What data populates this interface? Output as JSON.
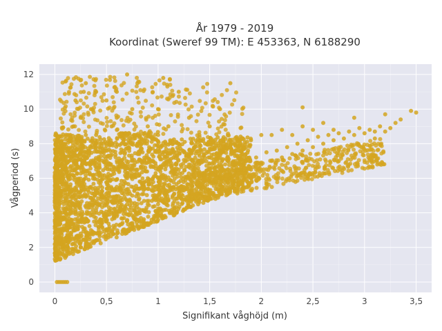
{
  "chart_data": {
    "type": "scatter",
    "title_line1": "År 1979 - 2019",
    "title_line2": "Koordinat (Sweref 99 TM): E 453363, N 6188290",
    "xlabel": "Signifikant våghöjd (m)",
    "ylabel": "Vågperiod (s)",
    "xlim": [
      -0.15,
      3.65
    ],
    "ylim": [
      -0.6,
      12.6
    ],
    "xticks": [
      0,
      0.5,
      1,
      1.5,
      2,
      2.5,
      3,
      3.5
    ],
    "xtick_labels": [
      "0",
      "0,5",
      "1",
      "1,5",
      "2",
      "2,5",
      "3",
      "3,5"
    ],
    "yticks": [
      0,
      2,
      4,
      6,
      8,
      10,
      12
    ],
    "ytick_labels": [
      "0",
      "2",
      "4",
      "6",
      "8",
      "10",
      "12"
    ],
    "grid": true,
    "marker_color": "#D4A520",
    "background_color": "#E5E6F0",
    "points": [
      [
        0.02,
        0
      ],
      [
        0.04,
        0
      ],
      [
        0.06,
        0
      ],
      [
        0.08,
        0
      ],
      [
        0.1,
        0
      ],
      [
        0.12,
        0
      ],
      [
        0.02,
        1.5
      ],
      [
        0.05,
        1.3
      ],
      [
        0.1,
        1.4
      ],
      [
        0.15,
        1.7
      ],
      [
        0.2,
        1.8
      ],
      [
        0.25,
        2.0
      ],
      [
        0.3,
        2.2
      ],
      [
        0.4,
        2.4
      ],
      [
        0.5,
        2.6
      ],
      [
        0.6,
        2.8
      ],
      [
        0.7,
        3.0
      ],
      [
        0.8,
        3.2
      ],
      [
        0.9,
        3.4
      ],
      [
        1.0,
        3.6
      ],
      [
        1.05,
        3.7
      ],
      [
        0.02,
        2.5
      ],
      [
        0.02,
        3.5
      ],
      [
        0.02,
        4.5
      ],
      [
        0.02,
        5.5
      ],
      [
        0.02,
        6.5
      ],
      [
        0.02,
        7.3
      ],
      [
        0.02,
        8.2
      ],
      [
        0.05,
        3.0
      ],
      [
        0.05,
        5.0
      ],
      [
        0.05,
        7.5
      ],
      [
        0.08,
        2.5
      ],
      [
        0.08,
        6.0
      ],
      [
        0.1,
        4.0
      ],
      [
        0.1,
        8.0
      ],
      [
        0.12,
        3.0
      ],
      [
        0.12,
        7.0
      ],
      [
        0.15,
        2.5
      ],
      [
        0.15,
        5.5
      ],
      [
        0.15,
        8.5
      ],
      [
        0.18,
        4.5
      ],
      [
        0.18,
        9.0
      ],
      [
        0.2,
        3.0
      ],
      [
        0.2,
        6.5
      ],
      [
        0.2,
        10.5
      ],
      [
        0.25,
        2.8
      ],
      [
        0.25,
        5.0
      ],
      [
        0.25,
        7.5
      ],
      [
        0.25,
        9.5
      ],
      [
        0.28,
        11.0
      ],
      [
        0.3,
        3.5
      ],
      [
        0.3,
        6.0
      ],
      [
        0.3,
        8.5
      ],
      [
        0.3,
        11.5
      ],
      [
        0.35,
        3.0
      ],
      [
        0.35,
        5.5
      ],
      [
        0.35,
        7.0
      ],
      [
        0.35,
        10.0
      ],
      [
        0.4,
        4.0
      ],
      [
        0.4,
        6.5
      ],
      [
        0.4,
        8.5
      ],
      [
        0.4,
        11.0
      ],
      [
        0.45,
        3.2
      ],
      [
        0.45,
        5.0
      ],
      [
        0.45,
        7.5
      ],
      [
        0.5,
        3.5
      ],
      [
        0.5,
        6.0
      ],
      [
        0.5,
        8.0
      ],
      [
        0.5,
        10.5
      ],
      [
        0.55,
        4.0
      ],
      [
        0.55,
        6.5
      ],
      [
        0.55,
        9.0
      ],
      [
        0.6,
        3.8
      ],
      [
        0.6,
        5.5
      ],
      [
        0.6,
        7.0
      ],
      [
        0.6,
        9.5
      ],
      [
        0.6,
        11.0
      ],
      [
        0.65,
        4.2
      ],
      [
        0.65,
        7.5
      ],
      [
        0.7,
        12.0
      ],
      [
        0.7,
        4.5
      ],
      [
        0.7,
        6.0
      ],
      [
        0.7,
        8.5
      ],
      [
        0.75,
        5.0
      ],
      [
        0.75,
        7.0
      ],
      [
        0.75,
        10.0
      ],
      [
        0.8,
        4.0
      ],
      [
        0.8,
        6.5
      ],
      [
        0.8,
        8.0
      ],
      [
        0.8,
        11.5
      ],
      [
        0.85,
        5.5
      ],
      [
        0.85,
        7.5
      ],
      [
        0.9,
        4.5
      ],
      [
        0.9,
        6.0
      ],
      [
        0.9,
        9.0
      ],
      [
        0.95,
        5.0
      ],
      [
        0.95,
        7.0
      ],
      [
        1.0,
        4.5
      ],
      [
        1.0,
        6.5
      ],
      [
        1.0,
        8.5
      ],
      [
        1.0,
        10.0
      ],
      [
        1.05,
        5.5
      ],
      [
        1.05,
        7.5
      ],
      [
        1.05,
        11.8
      ],
      [
        1.1,
        4.8
      ],
      [
        1.1,
        6.8
      ],
      [
        1.1,
        9.0
      ],
      [
        1.15,
        5.5
      ],
      [
        1.15,
        7.2
      ],
      [
        1.2,
        5.0
      ],
      [
        1.2,
        6.5
      ],
      [
        1.2,
        8.0
      ],
      [
        1.2,
        11.0
      ],
      [
        1.25,
        5.5
      ],
      [
        1.25,
        7.5
      ],
      [
        1.3,
        5.2
      ],
      [
        1.3,
        6.8
      ],
      [
        1.3,
        9.5
      ],
      [
        1.35,
        6.0
      ],
      [
        1.35,
        7.8
      ],
      [
        1.4,
        5.5
      ],
      [
        1.4,
        7.0
      ],
      [
        1.4,
        8.5
      ],
      [
        1.45,
        6.2
      ],
      [
        1.5,
        5.8
      ],
      [
        1.5,
        7.2
      ],
      [
        1.5,
        9.0
      ],
      [
        1.55,
        6.5
      ],
      [
        1.6,
        6.0
      ],
      [
        1.6,
        7.5
      ],
      [
        1.6,
        10.0
      ],
      [
        1.65,
        6.8
      ],
      [
        1.7,
        6.2
      ],
      [
        1.7,
        7.8
      ],
      [
        1.7,
        11.5
      ],
      [
        1.75,
        6.8
      ],
      [
        1.8,
        6.5
      ],
      [
        1.8,
        8.0
      ],
      [
        1.85,
        7.0
      ],
      [
        1.9,
        6.5
      ],
      [
        1.9,
        8.2
      ],
      [
        1.95,
        7.2
      ],
      [
        2.0,
        6.8
      ],
      [
        2.0,
        8.5
      ],
      [
        2.05,
        7.5
      ],
      [
        2.1,
        7.0
      ],
      [
        2.1,
        8.5
      ],
      [
        2.15,
        7.6
      ],
      [
        2.2,
        7.2
      ],
      [
        2.2,
        8.8
      ],
      [
        2.25,
        7.8
      ],
      [
        2.3,
        7.4
      ],
      [
        2.3,
        8.5
      ],
      [
        2.35,
        8.0
      ],
      [
        2.4,
        7.6
      ],
      [
        2.4,
        9.0
      ],
      [
        2.45,
        8.2
      ],
      [
        2.5,
        7.8
      ],
      [
        2.5,
        8.8
      ],
      [
        2.55,
        8.4
      ],
      [
        2.6,
        8.0
      ],
      [
        2.6,
        9.2
      ],
      [
        2.65,
        8.5
      ],
      [
        2.7,
        8.2
      ],
      [
        2.7,
        8.8
      ],
      [
        2.75,
        8.6
      ],
      [
        2.8,
        8.3
      ],
      [
        2.85,
        8.7
      ],
      [
        2.9,
        8.5
      ],
      [
        2.95,
        8.9
      ],
      [
        3.0,
        8.6
      ],
      [
        3.05,
        8.8
      ],
      [
        3.1,
        8.7
      ],
      [
        3.15,
        9.0
      ],
      [
        3.2,
        8.7
      ],
      [
        3.25,
        8.9
      ],
      [
        3.3,
        9.2
      ],
      [
        3.35,
        9.4
      ],
      [
        3.45,
        9.9
      ],
      [
        3.5,
        9.8
      ],
      [
        3.2,
        9.7
      ],
      [
        2.97,
        7.8
      ],
      [
        2.7,
        7.7
      ],
      [
        3.1,
        8.3
      ],
      [
        2.4,
        10.1
      ],
      [
        2.9,
        9.5
      ]
    ]
  }
}
